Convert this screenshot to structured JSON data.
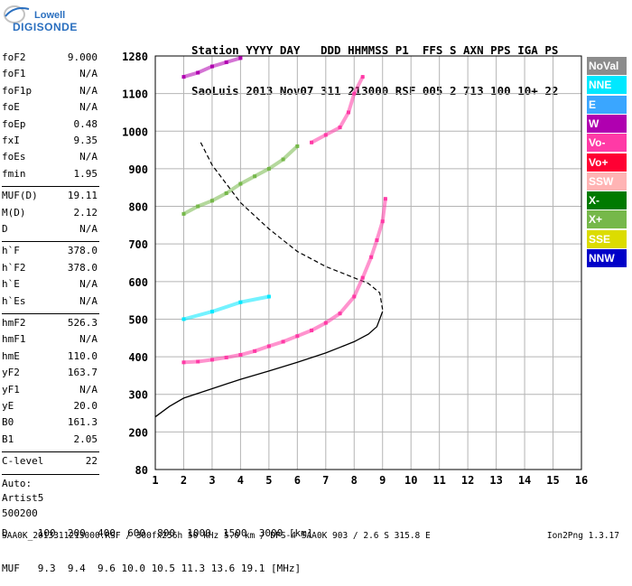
{
  "logo": {
    "line1": "Lowell",
    "line2": "DIGISONDE"
  },
  "header": {
    "line1": "Station YYYY DAY   DDD HHMMSS P1  FFS S AXN PPS IGA PS",
    "line2": "SaoLuis 2013 Nov07 311 213000 RSF 005 2 713 100 10+ 22"
  },
  "params_a": [
    {
      "name": "foF2",
      "value": "9.000"
    },
    {
      "name": "foF1",
      "value": "N/A"
    },
    {
      "name": "foF1p",
      "value": "N/A"
    },
    {
      "name": "foE",
      "value": "N/A"
    },
    {
      "name": "foEp",
      "value": "0.48"
    },
    {
      "name": "fxI",
      "value": "9.35"
    },
    {
      "name": "foEs",
      "value": "N/A"
    },
    {
      "name": "fmin",
      "value": "1.95"
    }
  ],
  "params_b": [
    {
      "name": "MUF(D)",
      "value": "19.11"
    },
    {
      "name": "M(D)",
      "value": "2.12"
    },
    {
      "name": "D",
      "value": "N/A"
    }
  ],
  "params_c": [
    {
      "name": "h`F",
      "value": "378.0"
    },
    {
      "name": "h`F2",
      "value": "378.0"
    },
    {
      "name": "h`E",
      "value": "N/A"
    },
    {
      "name": "h`Es",
      "value": "N/A"
    }
  ],
  "params_d": [
    {
      "name": "hmF2",
      "value": "526.3"
    },
    {
      "name": "hmF1",
      "value": "N/A"
    },
    {
      "name": "hmE",
      "value": "110.0"
    },
    {
      "name": "yF2",
      "value": "163.7"
    },
    {
      "name": "yF1",
      "value": "N/A"
    },
    {
      "name": "yE",
      "value": "20.0"
    },
    {
      "name": "B0",
      "value": "161.3"
    },
    {
      "name": "B1",
      "value": "2.05"
    }
  ],
  "clevel": {
    "name": "C-level",
    "value": "22"
  },
  "scaler": {
    "line1": "Auto:",
    "line2": "Artist5",
    "line3": "500200"
  },
  "legend": [
    {
      "label": "NoVal",
      "color": "#8c8c8c"
    },
    {
      "label": "NNE",
      "color": "#00e8ff"
    },
    {
      "label": "E",
      "color": "#3aa6ff"
    },
    {
      "label": "W",
      "color": "#b000b0"
    },
    {
      "label": "Vo-",
      "color": "#ff3aa6"
    },
    {
      "label": "Vo+",
      "color": "#ff0033"
    },
    {
      "label": "SSW",
      "color": "#ffb4b4"
    },
    {
      "label": "X-",
      "color": "#007a00"
    },
    {
      "label": "X+",
      "color": "#76b84a"
    },
    {
      "label": "SSE",
      "color": "#dcdc00"
    },
    {
      "label": "NNW",
      "color": "#0000c8"
    }
  ],
  "footer": {
    "dline": "D     100  200  400  600  800  1000  1500  3000 [km]",
    "mufline": "MUF   9.3  9.4  9.6 10.0 10.5 11.3 13.6 19.1 [MHz]",
    "bottom": "SAA0K_2013311213000.RSF / 300fx256h 50 kHz 5.0 km / DPS-4 SAA0K 903 / 2.6 S 315.8 E",
    "version": "Ion2Png 1.3.17"
  },
  "chart_data": {
    "type": "scatter",
    "xlim": [
      1,
      16
    ],
    "xticks": [
      1,
      2,
      3,
      4,
      5,
      6,
      7,
      8,
      9,
      10,
      11,
      12,
      13,
      14,
      15,
      16
    ],
    "yticks": [
      80,
      200,
      300,
      400,
      500,
      600,
      700,
      800,
      900,
      1000,
      1100,
      1280
    ],
    "grid": true,
    "series": [
      {
        "kind": "line",
        "color": "#000000",
        "x": [
          1.0,
          1.5,
          2.0,
          3.0,
          4.0,
          5.0,
          6.0,
          7.0,
          7.5,
          8.0,
          8.5,
          8.8,
          9.0
        ],
        "y": [
          240,
          268,
          290,
          315,
          340,
          362,
          385,
          410,
          425,
          440,
          460,
          480,
          520
        ]
      },
      {
        "kind": "dashed",
        "color": "#000000",
        "x": [
          2.6,
          3.0,
          3.5,
          4.0,
          4.5,
          5.0,
          5.5,
          6.0,
          6.5,
          7.0,
          7.5,
          8.0,
          8.5,
          8.9,
          9.0
        ],
        "y": [
          970,
          910,
          860,
          810,
          775,
          740,
          710,
          680,
          660,
          640,
          625,
          610,
          595,
          570,
          526
        ]
      },
      {
        "kind": "trace",
        "color": "#ff3aa6",
        "x": [
          2.0,
          2.5,
          3.0,
          3.5,
          4.0,
          4.5,
          5.0,
          5.5,
          6.0,
          6.5,
          7.0,
          7.5,
          8.0,
          8.3,
          8.6,
          8.8,
          9.0,
          9.1
        ],
        "y": [
          385,
          387,
          392,
          398,
          405,
          415,
          428,
          440,
          455,
          470,
          490,
          515,
          560,
          610,
          665,
          710,
          760,
          820
        ]
      },
      {
        "kind": "trace",
        "color": "#76b84a",
        "x": [
          2.0,
          2.5,
          3.0,
          3.5,
          4.0,
          4.5,
          5.0,
          5.5,
          6.0
        ],
        "y": [
          780,
          800,
          815,
          835,
          860,
          880,
          900,
          925,
          960
        ]
      },
      {
        "kind": "trace",
        "color": "#00e8ff",
        "x": [
          2.0,
          3.0,
          4.0,
          5.0
        ],
        "y": [
          500,
          520,
          545,
          560
        ]
      },
      {
        "kind": "trace",
        "color": "#ff3aa6",
        "x": [
          6.5,
          7.0,
          7.5,
          7.8,
          8.0,
          8.3
        ],
        "y": [
          970,
          990,
          1010,
          1050,
          1100,
          1180
        ]
      },
      {
        "kind": "trace",
        "color": "#b000b0",
        "x": [
          2.0,
          2.5,
          3.0,
          3.5,
          4.0
        ],
        "y": [
          1180,
          1200,
          1230,
          1250,
          1270
        ]
      }
    ]
  }
}
